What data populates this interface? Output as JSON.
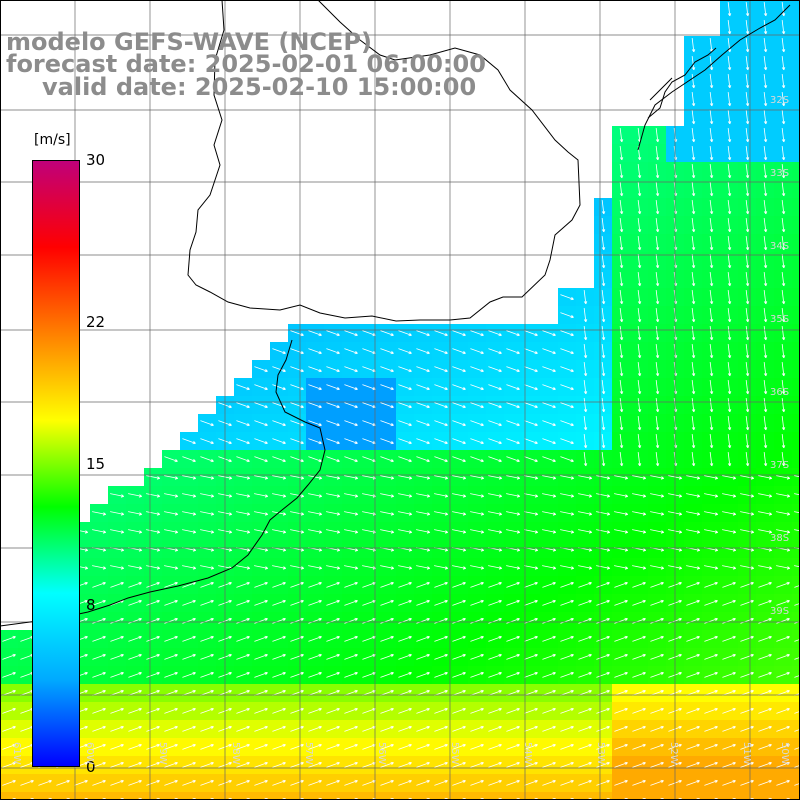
{
  "title": {
    "line1": "modelo GEFS-WAVE (NCEP)",
    "line2": "forecast date: 2025-02-01 06:00:00",
    "line3": "valid date: 2025-02-10 15:00:00"
  },
  "colorbar": {
    "units": "[m/s]",
    "min": 0,
    "max": 30,
    "ticks": [
      {
        "label": "30",
        "value": 30
      },
      {
        "label": "22",
        "value": 22
      },
      {
        "label": "15",
        "value": 15
      },
      {
        "label": "8",
        "value": 8
      },
      {
        "label": "0",
        "value": 0
      }
    ],
    "stops": [
      "#0000ff",
      "#00aaff",
      "#00ffff",
      "#00ff00",
      "#ffff00",
      "#ff8000",
      "#ff0000",
      "#c0007a"
    ]
  },
  "map": {
    "lon_labels": [
      "61W",
      "60W",
      "59W",
      "58W",
      "57W",
      "56W",
      "55W",
      "54W",
      "53W",
      "52W",
      "51W",
      "50W"
    ],
    "lat_labels": [
      "32S",
      "33S",
      "34S",
      "35S",
      "36S",
      "37S",
      "38S",
      "39S"
    ],
    "colors": {
      "land": "#ffffff",
      "coastline": "#000000",
      "grid": "#666666",
      "arrows": "#ffffff"
    }
  }
}
